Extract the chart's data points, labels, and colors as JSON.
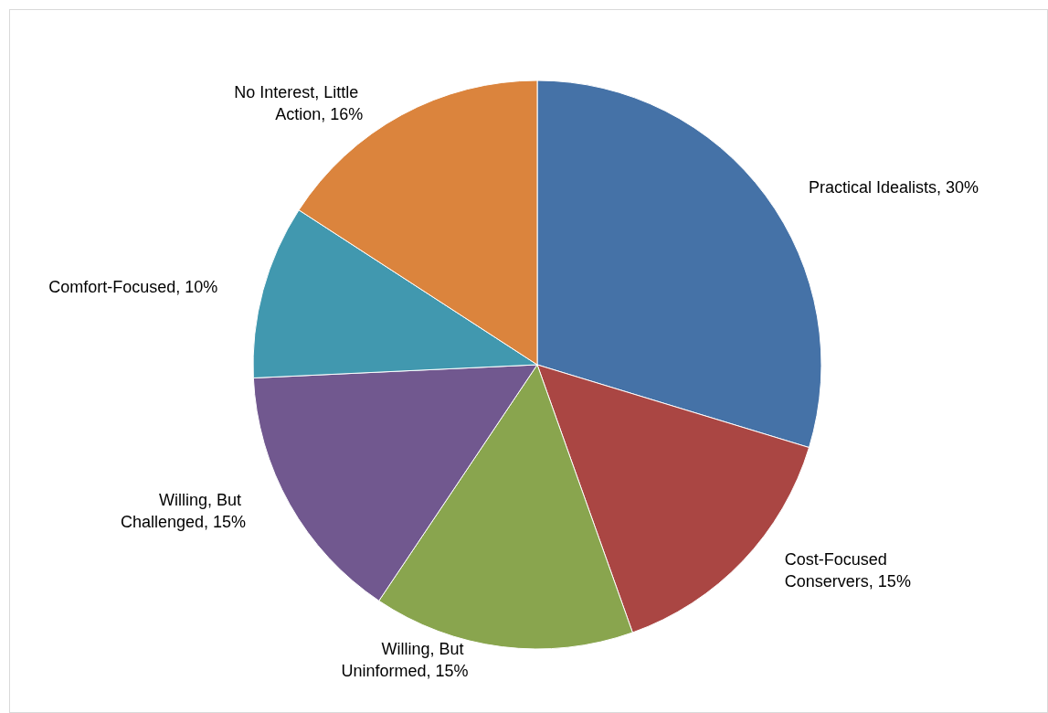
{
  "chart_data": {
    "type": "pie",
    "categories": [
      "Practical Idealists",
      "Cost-Focused Conservers",
      "Willing, But Uninformed",
      "Willing, But Challenged",
      "Comfort-Focused",
      "No Interest, Little Action"
    ],
    "values": [
      30,
      15,
      15,
      15,
      10,
      16
    ],
    "value_labels": [
      "30%",
      "15%",
      "15%",
      "15%",
      "10%",
      "16%"
    ],
    "colors": [
      "#4572a7",
      "#aa4643",
      "#89a54e",
      "#71588f",
      "#4198af",
      "#db843d"
    ]
  }
}
